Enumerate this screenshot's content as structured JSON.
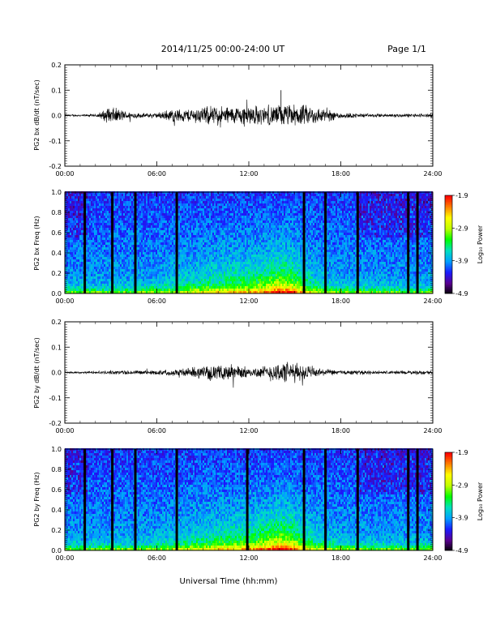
{
  "header": {
    "date_range": "2014/11/25  00:00-24:00 UT",
    "page": "Page 1/1"
  },
  "xaxis": {
    "title": "Universal Time (hh:mm)",
    "ticks": [
      "00:00",
      "06:00",
      "12:00",
      "18:00",
      "24:00"
    ],
    "range_hours": [
      0,
      24
    ]
  },
  "colorbar": {
    "label": "Log₁₀ Power",
    "ticks": [
      "-1.9",
      "-2.9",
      "-3.9",
      "-4.9"
    ],
    "range": [
      -4.9,
      -1.9
    ],
    "colors": [
      "#000000",
      "#5a0090",
      "#1a1aff",
      "#00a0ff",
      "#00e0c0",
      "#00ff00",
      "#c0ff00",
      "#ffff00",
      "#ff8000",
      "#ff0000"
    ]
  },
  "chart_data": [
    {
      "type": "line",
      "ylabel": "PG2 bx dB/dt (nT/sec)",
      "ylim": [
        -0.2,
        0.2
      ],
      "yticks": [
        "0.2",
        "0.1",
        "0.0",
        "-0.1",
        "-0.2"
      ],
      "x_hours": [
        0,
        1,
        2,
        3,
        4,
        5,
        6,
        7,
        8,
        9,
        10,
        11,
        12,
        13,
        14,
        15,
        16,
        17,
        18,
        19,
        20,
        21,
        22,
        23,
        24
      ],
      "amplitude": [
        0.005,
        0.005,
        0.006,
        0.04,
        0.02,
        0.01,
        0.012,
        0.03,
        0.03,
        0.04,
        0.045,
        0.04,
        0.05,
        0.04,
        0.05,
        0.05,
        0.045,
        0.03,
        0.015,
        0.01,
        0.008,
        0.008,
        0.008,
        0.008,
        0.01
      ],
      "events": [
        {
          "x_hours": 14.1,
          "y": 0.1
        }
      ],
      "color": "#000000"
    },
    {
      "type": "heatmap",
      "ylabel": "PG2 bx Freq (Hz)",
      "ylim": [
        0,
        1.0
      ],
      "yticks": [
        "1.0",
        "0.8",
        "0.6",
        "0.4",
        "0.2",
        "0.0"
      ],
      "gap_hours": [
        1.3,
        3.1,
        4.6,
        7.3,
        15.6,
        17.0,
        19.1,
        22.4,
        23.0
      ]
    },
    {
      "type": "line",
      "ylabel": "PG2 by dB/dt (nT/sec)",
      "ylim": [
        -0.2,
        0.2
      ],
      "yticks": [
        "0.2",
        "0.1",
        "0.0",
        "-0.1",
        "-0.2"
      ],
      "x_hours": [
        0,
        1,
        2,
        3,
        4,
        5,
        6,
        7,
        8,
        9,
        10,
        11,
        12,
        13,
        14,
        15,
        16,
        17,
        18,
        19,
        20,
        21,
        22,
        23,
        24
      ],
      "amplitude": [
        0.005,
        0.005,
        0.006,
        0.008,
        0.01,
        0.01,
        0.01,
        0.015,
        0.02,
        0.03,
        0.03,
        0.04,
        0.02,
        0.03,
        0.05,
        0.045,
        0.03,
        0.015,
        0.01,
        0.01,
        0.008,
        0.008,
        0.008,
        0.008,
        0.008
      ],
      "events": [],
      "color": "#000000"
    },
    {
      "type": "heatmap",
      "ylabel": "PG2 by Freq (Hz)",
      "ylim": [
        0,
        1.0
      ],
      "yticks": [
        "1.0",
        "0.8",
        "0.6",
        "0.4",
        "0.2",
        "0.0"
      ],
      "gap_hours": [
        1.3,
        3.1,
        4.6,
        7.3,
        11.9,
        15.6,
        17.0,
        19.1,
        22.4,
        23.0
      ]
    }
  ]
}
